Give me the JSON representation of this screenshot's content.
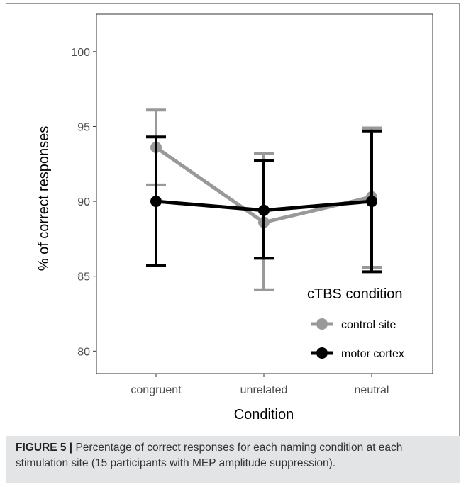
{
  "chart_data": {
    "type": "line",
    "title": "",
    "xlabel": "Condition",
    "ylabel": "% of correct responses",
    "categories": [
      "congruent",
      "unrelated",
      "neutral"
    ],
    "ylim": [
      78.5,
      102.5
    ],
    "yticks": [
      80,
      85,
      90,
      95,
      100
    ],
    "grid": false,
    "legend": {
      "title": "cTBS condition",
      "position": "bottom-right"
    },
    "series": [
      {
        "name": "control site",
        "color": "#999999",
        "values": [
          93.6,
          88.6,
          90.3
        ],
        "error_low": [
          91.1,
          84.1,
          85.6
        ],
        "error_high": [
          96.1,
          93.2,
          94.9
        ]
      },
      {
        "name": "motor cortex",
        "color": "#000000",
        "values": [
          90.0,
          89.4,
          90.0
        ],
        "error_low": [
          85.7,
          86.2,
          85.3
        ],
        "error_high": [
          94.3,
          92.7,
          94.7
        ]
      }
    ]
  },
  "caption": {
    "label": "FIGURE 5 |",
    "text": "Percentage of correct responses for each naming condition at each stimulation site (15 participants with MEP amplitude suppression)."
  }
}
